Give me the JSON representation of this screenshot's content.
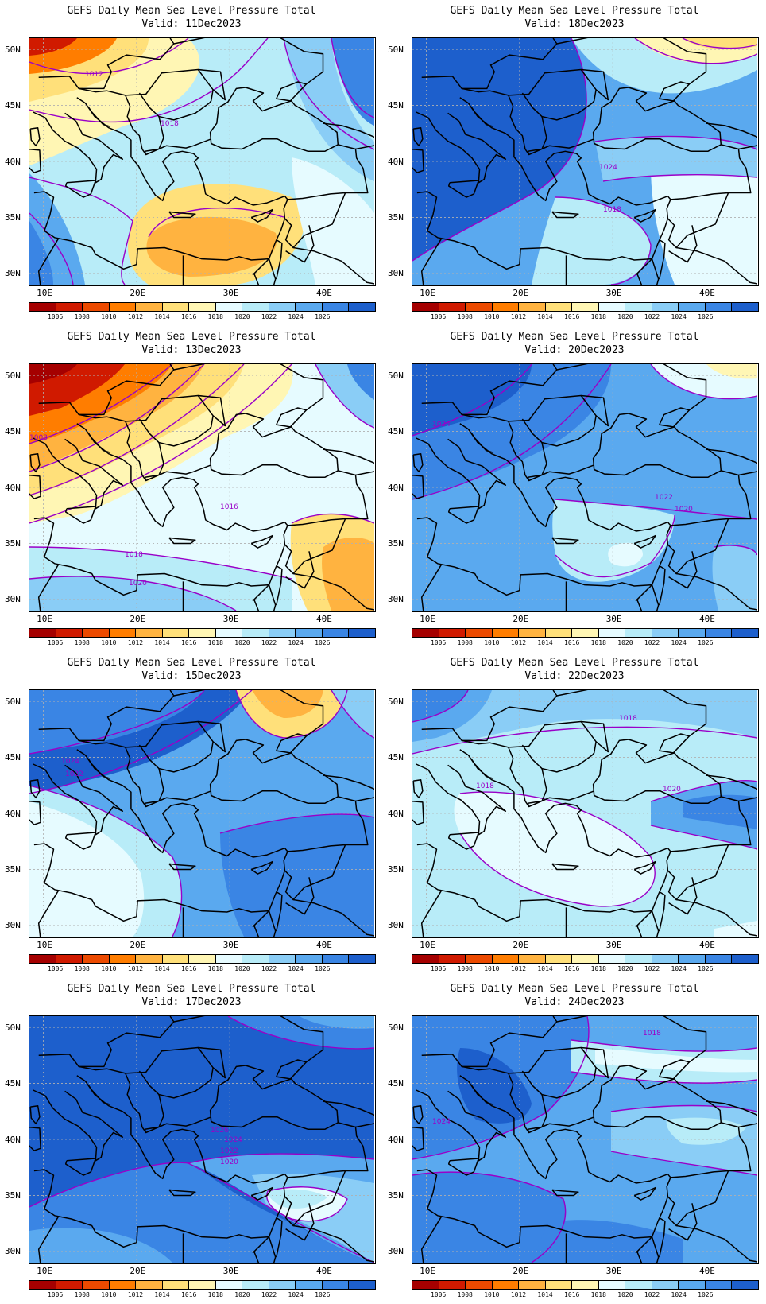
{
  "figure": {
    "title_text": "GEFS Daily Mean Sea Level Pressure Total",
    "panels": [
      {
        "title": "GEFS Daily Mean Sea Level Pressure Total",
        "valid": "Valid: 11Dec2023",
        "theme": "warm_mix",
        "isobar_labels": [
          "1012",
          "1018"
        ]
      },
      {
        "title": "GEFS Daily Mean Sea Level Pressure Total",
        "valid": "Valid: 18Dec2023",
        "theme": "blue_high",
        "isobar_labels": [
          "1024",
          "1018"
        ]
      },
      {
        "title": "GEFS Daily Mean Sea Level Pressure Total",
        "valid": "Valid: 13Dec2023",
        "theme": "red_low",
        "isobar_labels": [
          "1008",
          "1016",
          "1018",
          "1020"
        ]
      },
      {
        "title": "GEFS Daily Mean Sea Level Pressure Total",
        "valid": "Valid: 20Dec2023",
        "theme": "blue_mid",
        "isobar_labels": [
          "1024",
          "1022",
          "1020"
        ]
      },
      {
        "title": "GEFS Daily Mean Sea Level Pressure Total",
        "valid": "Valid: 15Dec2023",
        "theme": "blue_north_warm",
        "isobar_labels": [
          "1024",
          "1022"
        ]
      },
      {
        "title": "GEFS Daily Mean Sea Level Pressure Total",
        "valid": "Valid: 22Dec2023",
        "theme": "light_blue",
        "isobar_labels": [
          "1018",
          "1018",
          "1020"
        ]
      },
      {
        "title": "GEFS Daily Mean Sea Level Pressure Total",
        "valid": "Valid: 17Dec2023",
        "theme": "deep_blue",
        "isobar_labels": [
          "1026",
          "1024",
          "1022",
          "1020"
        ]
      },
      {
        "title": "GEFS Daily Mean Sea Level Pressure Total",
        "valid": "Valid: 24Dec2023",
        "theme": "blue_mid2",
        "isobar_labels": [
          "1018",
          "1024"
        ]
      }
    ],
    "lat_labels": [
      "50N",
      "45N",
      "40N",
      "35N",
      "30N"
    ],
    "lon_labels": [
      "10E",
      "20E",
      "30E",
      "40E"
    ],
    "colorbar_levels": [
      "1006",
      "1008",
      "1010",
      "1012",
      "1014",
      "1016",
      "1018",
      "1020",
      "1022",
      "1024",
      "1026"
    ],
    "colorbar_colors": [
      "#a50000",
      "#d01a00",
      "#ec4a00",
      "#ff7d00",
      "#ffb340",
      "#ffe07a",
      "#fff6b4",
      "#e6fbff",
      "#b8ecf8",
      "#8acdf6",
      "#5aa9ef",
      "#3a85e4",
      "#1d5fcc"
    ],
    "map_styles": {
      "land_border": "#000000",
      "isobar": "#9a00c8",
      "grid": "#b0b0b0"
    }
  }
}
